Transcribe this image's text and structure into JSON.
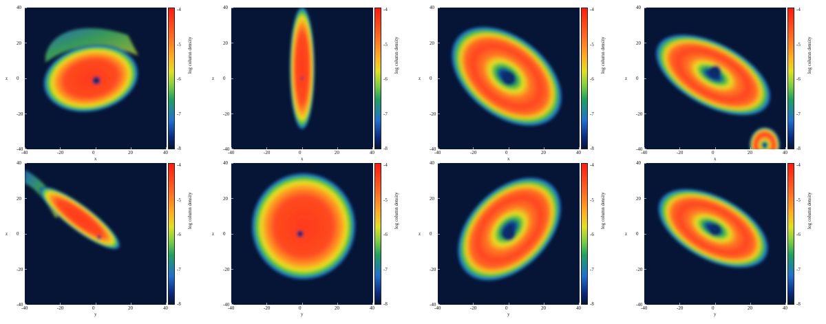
{
  "figure": {
    "panels": [
      {
        "xlabel": "x",
        "ylabel": "z",
        "view": "xz-1"
      },
      {
        "xlabel": "x",
        "ylabel": "z",
        "view": "xz-2"
      },
      {
        "xlabel": "x",
        "ylabel": "z",
        "view": "xz-3"
      },
      {
        "xlabel": "x",
        "ylabel": "z",
        "view": "xz-4"
      },
      {
        "xlabel": "y",
        "ylabel": "z",
        "view": "yz-1"
      },
      {
        "xlabel": "y",
        "ylabel": "z",
        "view": "yz-2"
      },
      {
        "xlabel": "y",
        "ylabel": "z",
        "view": "yz-3"
      },
      {
        "xlabel": "y",
        "ylabel": "z",
        "view": "yz-4"
      }
    ],
    "axis_ticks": [
      "-40",
      "-20",
      "0",
      "20",
      "40"
    ],
    "colorbar_ticks": [
      "-4",
      "-5",
      "-6",
      "-7",
      "-8"
    ],
    "colorbar_label": "log column density"
  },
  "chart_data": [
    {
      "type": "heatmap",
      "panel": 1,
      "xlabel": "x",
      "ylabel": "z",
      "xlim": [
        -40,
        40
      ],
      "ylim": [
        -40,
        40
      ],
      "clim": [
        -8,
        -4
      ],
      "colorbar_label": "log column density",
      "features": "tilted disc with spiral arm extending to upper-left, central cavity near origin"
    },
    {
      "type": "heatmap",
      "panel": 2,
      "xlabel": "x",
      "ylabel": "z",
      "xlim": [
        -40,
        40
      ],
      "ylim": [
        -40,
        40
      ],
      "clim": [
        -8,
        -4
      ],
      "colorbar_label": "log column density",
      "features": "edge-on disc, vertical elongated ellipse"
    },
    {
      "type": "heatmap",
      "panel": 3,
      "xlabel": "x",
      "ylabel": "z",
      "xlim": [
        -40,
        40
      ],
      "ylim": [
        -40,
        40
      ],
      "clim": [
        -8,
        -4
      ],
      "colorbar_label": "log column density",
      "features": "inclined ring with inner cavity"
    },
    {
      "type": "heatmap",
      "panel": 4,
      "xlabel": "x",
      "ylabel": "z",
      "xlim": [
        -40,
        40
      ],
      "ylim": [
        -40,
        40
      ],
      "clim": [
        -8,
        -4
      ],
      "colorbar_label": "log column density",
      "features": "inclined ring with inner cavity, companion blob lower-right"
    },
    {
      "type": "heatmap",
      "panel": 5,
      "xlabel": "y",
      "ylabel": "z",
      "xlim": [
        -40,
        40
      ],
      "ylim": [
        -40,
        40
      ],
      "clim": [
        -8,
        -4
      ],
      "colorbar_label": "log column density",
      "features": "narrow tilted disc with stream to upper-left"
    },
    {
      "type": "heatmap",
      "panel": 6,
      "xlabel": "y",
      "ylabel": "z",
      "xlim": [
        -40,
        40
      ],
      "ylim": [
        -40,
        40
      ],
      "clim": [
        -8,
        -4
      ],
      "colorbar_label": "log column density",
      "features": "nearly face-on disc, small cavity left of center"
    },
    {
      "type": "heatmap",
      "panel": 7,
      "xlabel": "y",
      "ylabel": "z",
      "xlim": [
        -40,
        40
      ],
      "ylim": [
        -40,
        40
      ],
      "clim": [
        -8,
        -4
      ],
      "colorbar_label": "log column density",
      "features": "inclined ring with inner cavity"
    },
    {
      "type": "heatmap",
      "panel": 8,
      "xlabel": "y",
      "ylabel": "z",
      "xlim": [
        -40,
        40
      ],
      "ylim": [
        -40,
        40
      ],
      "clim": [
        -8,
        -4
      ],
      "colorbar_label": "log column density",
      "features": "inclined ring with inner cavity"
    }
  ]
}
